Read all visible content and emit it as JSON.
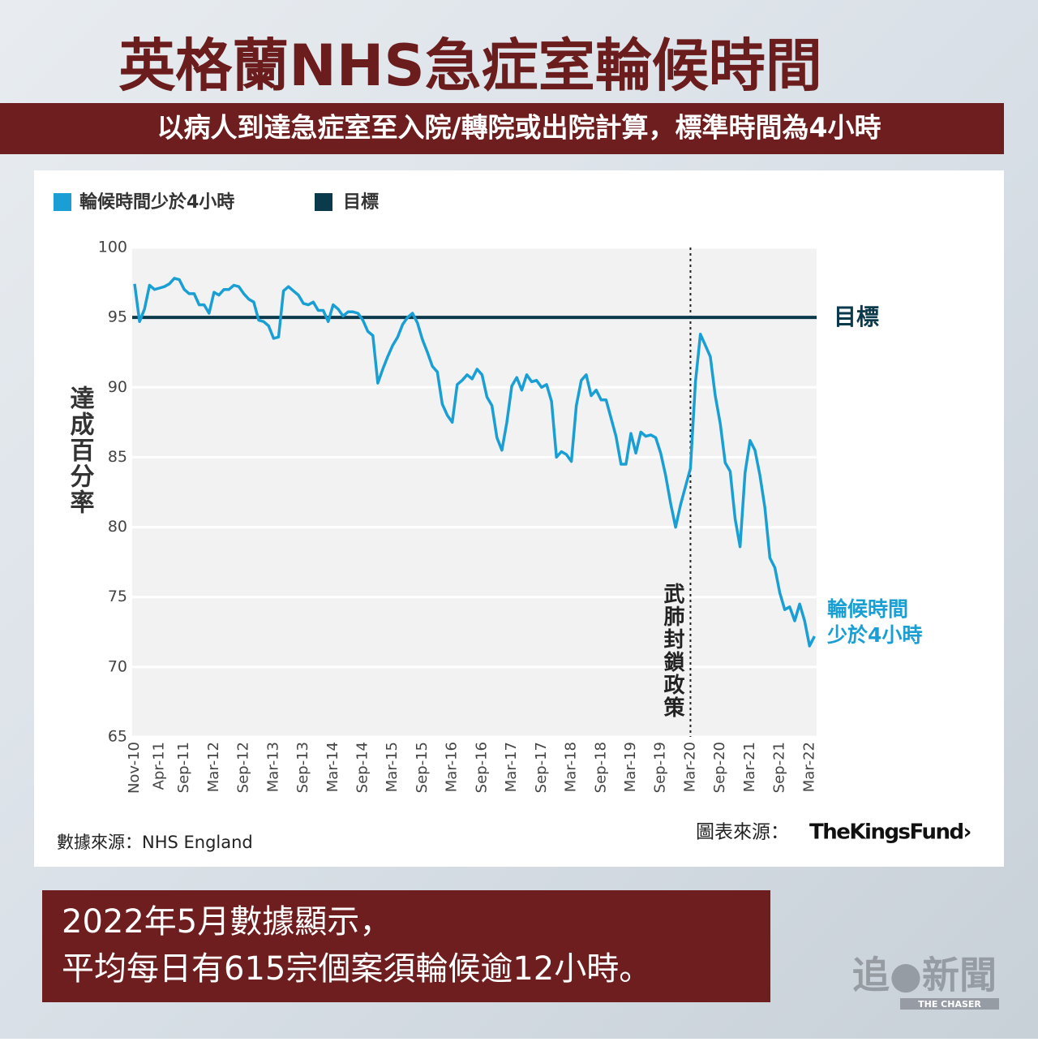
{
  "header": {
    "title": "英格蘭NHS急症室輪候時間",
    "subtitle": "以病人到達急症室至入院/轉院或出院計算，標準時間為4小時"
  },
  "chart_data": {
    "type": "line",
    "ylabel": "達成百分率",
    "categories": [
      "Nov-10",
      null,
      null,
      null,
      null,
      "Apr-11",
      null,
      null,
      null,
      null,
      "Sep-11",
      null,
      null,
      null,
      null,
      null,
      "Mar-12",
      null,
      null,
      null,
      null,
      null,
      "Sep-12",
      null,
      null,
      null,
      null,
      null,
      "Mar-13",
      null,
      null,
      null,
      null,
      null,
      "Sep-13",
      null,
      null,
      null,
      null,
      null,
      "Mar-14",
      null,
      null,
      null,
      null,
      null,
      "Sep-14",
      null,
      null,
      null,
      null,
      null,
      "Mar-15",
      null,
      null,
      null,
      null,
      null,
      "Sep-15",
      null,
      null,
      null,
      null,
      null,
      "Mar-16",
      null,
      null,
      null,
      null,
      null,
      "Sep-16",
      null,
      null,
      null,
      null,
      null,
      "Mar-17",
      null,
      null,
      null,
      null,
      null,
      "Sep-17",
      null,
      null,
      null,
      null,
      null,
      "Mar-18",
      null,
      null,
      null,
      null,
      null,
      "Sep-18",
      null,
      null,
      null,
      null,
      null,
      "Mar-19",
      null,
      null,
      null,
      null,
      null,
      "Sep-19",
      null,
      null,
      null,
      null,
      null,
      "Mar-20",
      null,
      null,
      null,
      null,
      null,
      "Sep-20",
      null,
      null,
      null,
      null,
      null,
      "Mar-21",
      null,
      null,
      null,
      null,
      null,
      "Sep-21",
      null,
      null,
      null,
      null,
      null,
      "Mar-22",
      null
    ],
    "series": [
      {
        "name": "輪候時間少於4小時",
        "color": "#1a9fd4",
        "values": [
          97.4,
          94.7,
          95.6,
          97.3,
          97.0,
          97.1,
          97.2,
          97.4,
          97.8,
          97.7,
          97.0,
          96.7,
          96.7,
          95.9,
          95.9,
          95.3,
          96.8,
          96.6,
          97.0,
          97.0,
          97.3,
          97.2,
          96.7,
          96.3,
          96.1,
          94.8,
          94.7,
          94.4,
          93.5,
          93.6,
          96.9,
          97.2,
          96.9,
          96.6,
          96.0,
          95.9,
          96.1,
          95.5,
          95.5,
          94.7,
          95.9,
          95.6,
          95.1,
          95.4,
          95.4,
          95.3,
          94.8,
          94.0,
          93.7,
          90.3,
          91.3,
          92.2,
          93.0,
          93.6,
          94.5,
          95.0,
          95.3,
          94.6,
          93.4,
          92.5,
          91.5,
          91.1,
          88.8,
          88.0,
          87.5,
          90.2,
          90.5,
          90.9,
          90.6,
          91.3,
          90.9,
          89.3,
          88.7,
          86.4,
          85.5,
          87.5,
          90.1,
          90.7,
          89.8,
          90.9,
          90.4,
          90.5,
          90.0,
          90.2,
          89.0,
          85.0,
          85.4,
          85.2,
          84.7,
          88.7,
          90.5,
          90.9,
          89.4,
          89.8,
          89.1,
          89.1,
          87.8,
          86.5,
          84.5,
          84.5,
          86.7,
          85.3,
          86.8,
          86.5,
          86.6,
          86.4,
          85.3,
          83.7,
          81.7,
          80.0,
          81.6,
          82.9,
          84.2,
          90.4,
          93.8,
          93.0,
          92.2,
          89.4,
          87.4,
          84.6,
          84.0,
          80.6,
          78.6,
          83.9,
          86.2,
          85.5,
          83.7,
          81.4,
          77.8,
          77.1,
          75.3,
          74.1,
          74.3,
          73.3,
          74.5,
          73.3,
          71.5,
          72.2
        ]
      }
    ],
    "reference_line": {
      "name": "目標",
      "value": 95,
      "color": "#0b3a4c",
      "label": "目標"
    },
    "end_label": [
      "輪候時間",
      "少於4小時"
    ],
    "event": {
      "at": "Mar-20",
      "text": "武肺封鎖政策"
    },
    "ylim": [
      65,
      100
    ],
    "yticks": [
      65,
      70,
      75,
      80,
      85,
      90,
      95,
      100
    ],
    "grid": true,
    "legend": "top-left",
    "source": "數據來源：NHS England",
    "chart_source": "圖表來源：",
    "chart_source_logo": "TheKingsFund›"
  },
  "footer": {
    "lines": [
      "2022年5月數據顯示，",
      "平均每日有615宗個案須輪候逾12小時。"
    ],
    "logo": "追●新聞",
    "logo_sub": "THE CHASER"
  }
}
